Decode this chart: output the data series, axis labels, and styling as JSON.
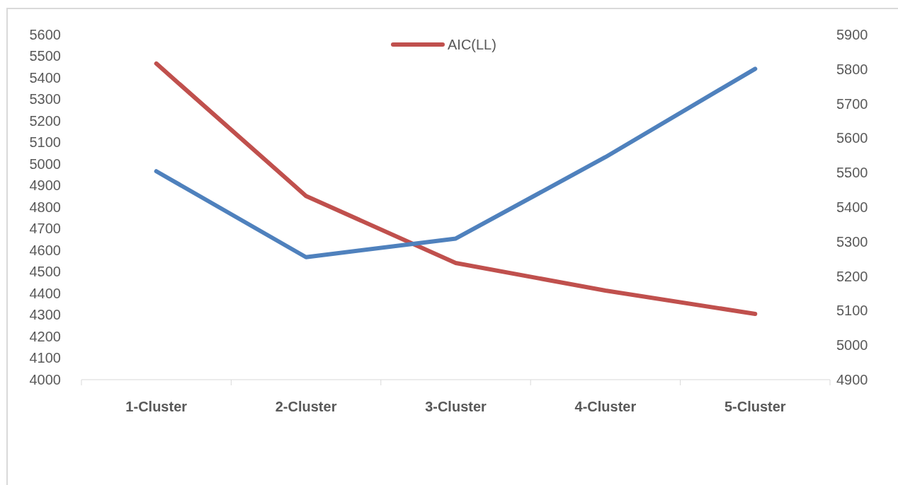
{
  "chart_data": {
    "type": "line",
    "categories": [
      "1-Cluster",
      "2-Cluster",
      "3-Cluster",
      "4-Cluster",
      "5-Cluster"
    ],
    "series": [
      {
        "name": "AIC(LL)",
        "color": "#c0504d",
        "values": [
          5466,
          4852,
          4541,
          4413,
          4305
        ]
      },
      {
        "color": "#4f81bd",
        "axis": "y2",
        "values": [
          5504,
          5255,
          5309,
          5545,
          5801
        ]
      }
    ],
    "ylim": [
      4000,
      5600
    ],
    "yticks": [
      4000,
      4100,
      4200,
      4300,
      4400,
      4500,
      4600,
      4700,
      4800,
      4900,
      5000,
      5100,
      5200,
      5300,
      5400,
      5500,
      5600
    ],
    "y2lim": [
      4900,
      5900
    ],
    "y2ticks": [
      4900,
      5000,
      5100,
      5200,
      5300,
      5400,
      5500,
      5600,
      5700,
      5800,
      5900
    ],
    "legend": "top",
    "grid": false,
    "marker": "none",
    "line_style": "solid"
  }
}
